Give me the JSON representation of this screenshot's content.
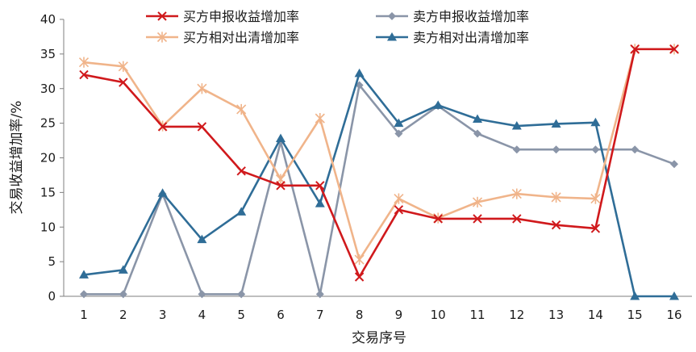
{
  "chart_data": {
    "type": "line",
    "title": "",
    "xlabel": "交易序号",
    "ylabel": "交易收益增加率/%",
    "x": [
      1,
      2,
      3,
      4,
      5,
      6,
      7,
      8,
      9,
      10,
      11,
      12,
      13,
      14,
      15,
      16
    ],
    "ylim": [
      0,
      40
    ],
    "yticks": [
      0,
      5,
      10,
      15,
      20,
      25,
      30,
      35,
      40
    ],
    "grid": false,
    "legend": "top",
    "series": [
      {
        "name": "买方申报收益增加率",
        "color": "#d0191c",
        "marker": "x",
        "values": [
          32,
          30.9,
          24.5,
          24.5,
          18.1,
          16,
          16,
          2.8,
          12.5,
          11.2,
          11.2,
          11.2,
          10.3,
          9.8,
          35.7,
          35.7
        ]
      },
      {
        "name": "卖方申报收益增加率",
        "color": "#8a95a8",
        "marker": "diamond",
        "values": [
          0.3,
          0.3,
          14.8,
          0.3,
          0.3,
          22.3,
          0.3,
          30.5,
          23.5,
          27.5,
          23.5,
          21.2,
          21.2,
          21.2,
          21.2,
          19.1
        ]
      },
      {
        "name": "买方相对出清增加率",
        "color": "#f0b48a",
        "marker": "asterisk",
        "values": [
          33.8,
          33.2,
          24.6,
          30,
          27,
          16.9,
          25.7,
          5.3,
          14.1,
          11.3,
          13.6,
          14.8,
          14.3,
          14.1,
          35.7,
          35.7
        ]
      },
      {
        "name": "卖方相对出清增加率",
        "color": "#2f6d97",
        "marker": "triangle",
        "values": [
          3.1,
          3.8,
          14.9,
          8.2,
          12.2,
          22.8,
          13.4,
          32.2,
          25,
          27.6,
          25.6,
          24.6,
          24.9,
          25.1,
          0,
          0
        ]
      }
    ]
  }
}
